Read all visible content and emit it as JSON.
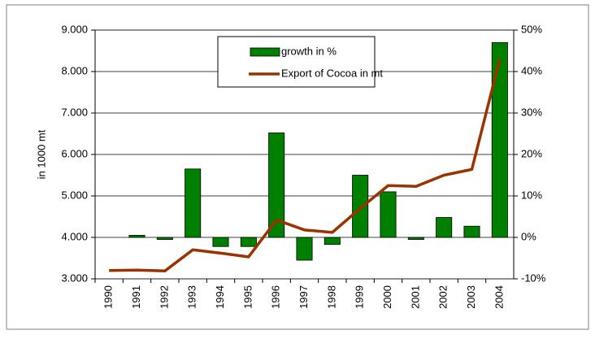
{
  "chart_data": {
    "type": "bar-line",
    "ylabel": "in 1000 mt",
    "categories": [
      "1990",
      "1991",
      "1992",
      "1993",
      "1994",
      "1995",
      "1996",
      "1997",
      "1998",
      "1999",
      "2000",
      "2001",
      "2002",
      "2003",
      "2004"
    ],
    "series": [
      {
        "name": "growth in %",
        "type": "bar",
        "axis": "y2",
        "color": "#008000",
        "values": [
          null,
          0.5,
          -0.5,
          16.5,
          -2.2,
          -2.2,
          25.2,
          -5.5,
          -1.7,
          15,
          11,
          -0.5,
          4.8,
          2.7,
          47
        ]
      },
      {
        "name": "Export of Cocoa  in mt",
        "type": "line",
        "axis": "y",
        "color": "#993300",
        "values": [
          3200,
          3210,
          3190,
          3700,
          3620,
          3530,
          4420,
          4180,
          4120,
          4700,
          5250,
          5230,
          5500,
          5640,
          8300
        ]
      }
    ],
    "ylim": [
      3000,
      9000
    ],
    "yticks": [
      {
        "value": 3000,
        "label": "3.000"
      },
      {
        "value": 4000,
        "label": "4.000"
      },
      {
        "value": 5000,
        "label": "5.000"
      },
      {
        "value": 6000,
        "label": "6.000"
      },
      {
        "value": 7000,
        "label": "7.000"
      },
      {
        "value": 8000,
        "label": "8.000"
      },
      {
        "value": 9000,
        "label": "9.000"
      }
    ],
    "y2lim": [
      -10,
      50
    ],
    "y2ticks": [
      {
        "value": -10,
        "label": "-10%"
      },
      {
        "value": 0,
        "label": "0%"
      },
      {
        "value": 10,
        "label": "10%"
      },
      {
        "value": 20,
        "label": "20%"
      },
      {
        "value": 30,
        "label": "30%"
      },
      {
        "value": 40,
        "label": "40%"
      },
      {
        "value": 50,
        "label": "50%"
      }
    ],
    "grid": true,
    "legend": "top-center"
  }
}
